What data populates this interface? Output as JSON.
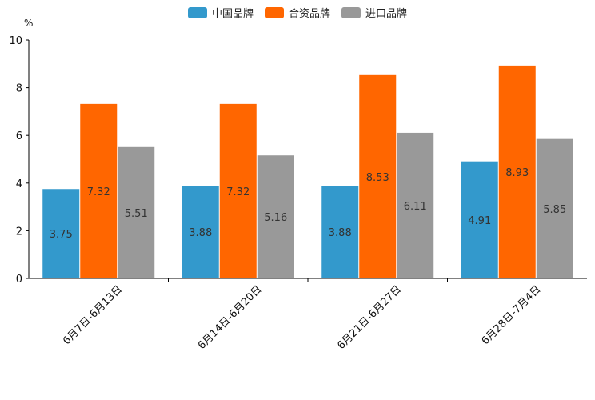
{
  "chart_data": {
    "type": "bar",
    "title": "",
    "xlabel": "",
    "ylabel": "%",
    "ylim": [
      0,
      10
    ],
    "yticks": [
      0,
      2,
      4,
      6,
      8,
      10
    ],
    "grid": false,
    "legend_position": "top-center",
    "categories": [
      "6月7日-6月13日",
      "6月14日-6月20日",
      "6月21日-6月27日",
      "6月28日-7月4日"
    ],
    "series": [
      {
        "name": "中国品牌",
        "color": "#3399cc",
        "values": [
          3.75,
          3.88,
          3.88,
          4.91
        ]
      },
      {
        "name": "合资品牌",
        "color": "#ff6600",
        "values": [
          7.32,
          7.32,
          8.53,
          8.93
        ]
      },
      {
        "name": "进口品牌",
        "color": "#999999",
        "values": [
          5.51,
          5.16,
          6.11,
          5.85
        ]
      }
    ]
  }
}
